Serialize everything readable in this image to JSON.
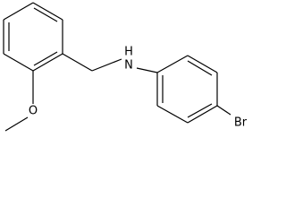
{
  "atoms": {
    "amine_n": "N",
    "amine_h": "H",
    "oxygen": "O",
    "bromine": "Br"
  }
}
